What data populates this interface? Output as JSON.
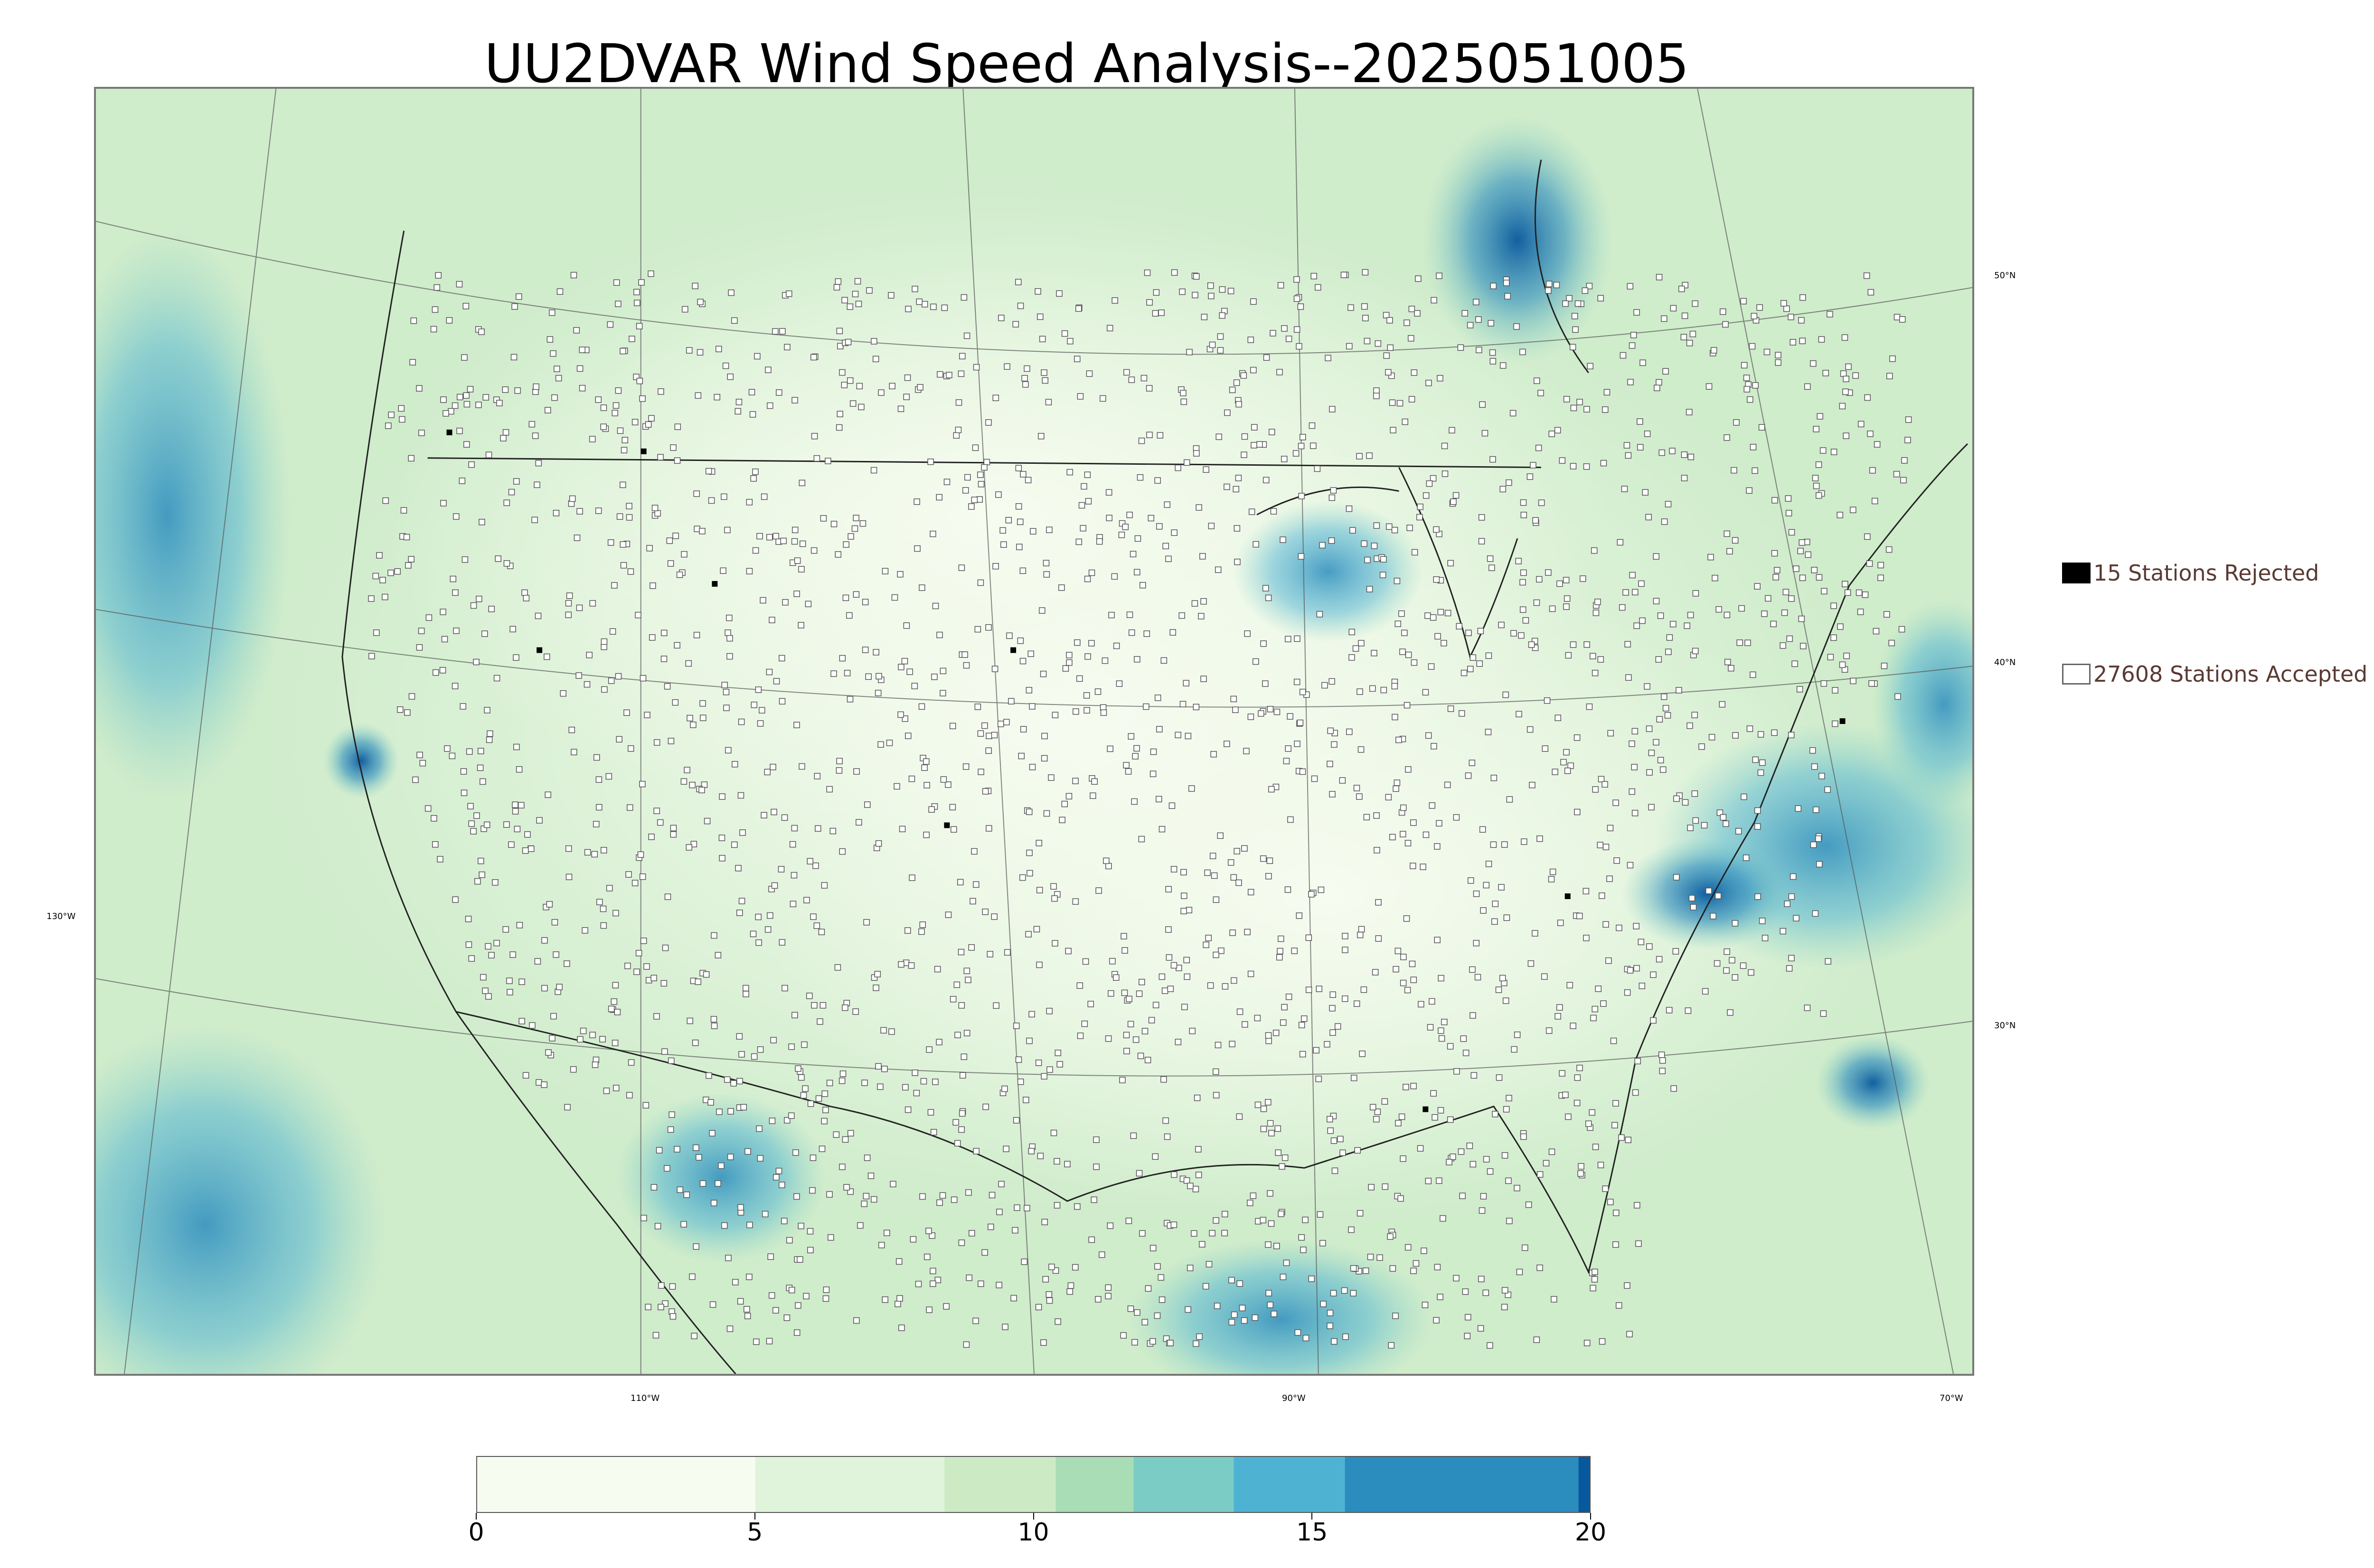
{
  "title": "UU2DVAR Wind Speed Analysis--2025051005",
  "map": {
    "lon_labels": [
      "130°W",
      "110°W",
      "90°W",
      "70°W"
    ],
    "lat_labels": [
      "50°N",
      "40°N",
      "30°N"
    ]
  },
  "legend": {
    "rejected_label": "15 Stations Rejected",
    "accepted_label": "27608 Stations Accepted",
    "rejected_color": "#000000",
    "accepted_color": "#ffffff"
  },
  "colorbar": {
    "ticks": [
      "0",
      "5",
      "10",
      "15",
      "20"
    ],
    "min": 0,
    "max": 20,
    "colors": [
      "#f7fcf0",
      "#e0f3db",
      "#ccebc5",
      "#a8ddb5",
      "#7bccc4",
      "#4eb3d3",
      "#2b8cbe",
      "#08589e"
    ]
  }
}
